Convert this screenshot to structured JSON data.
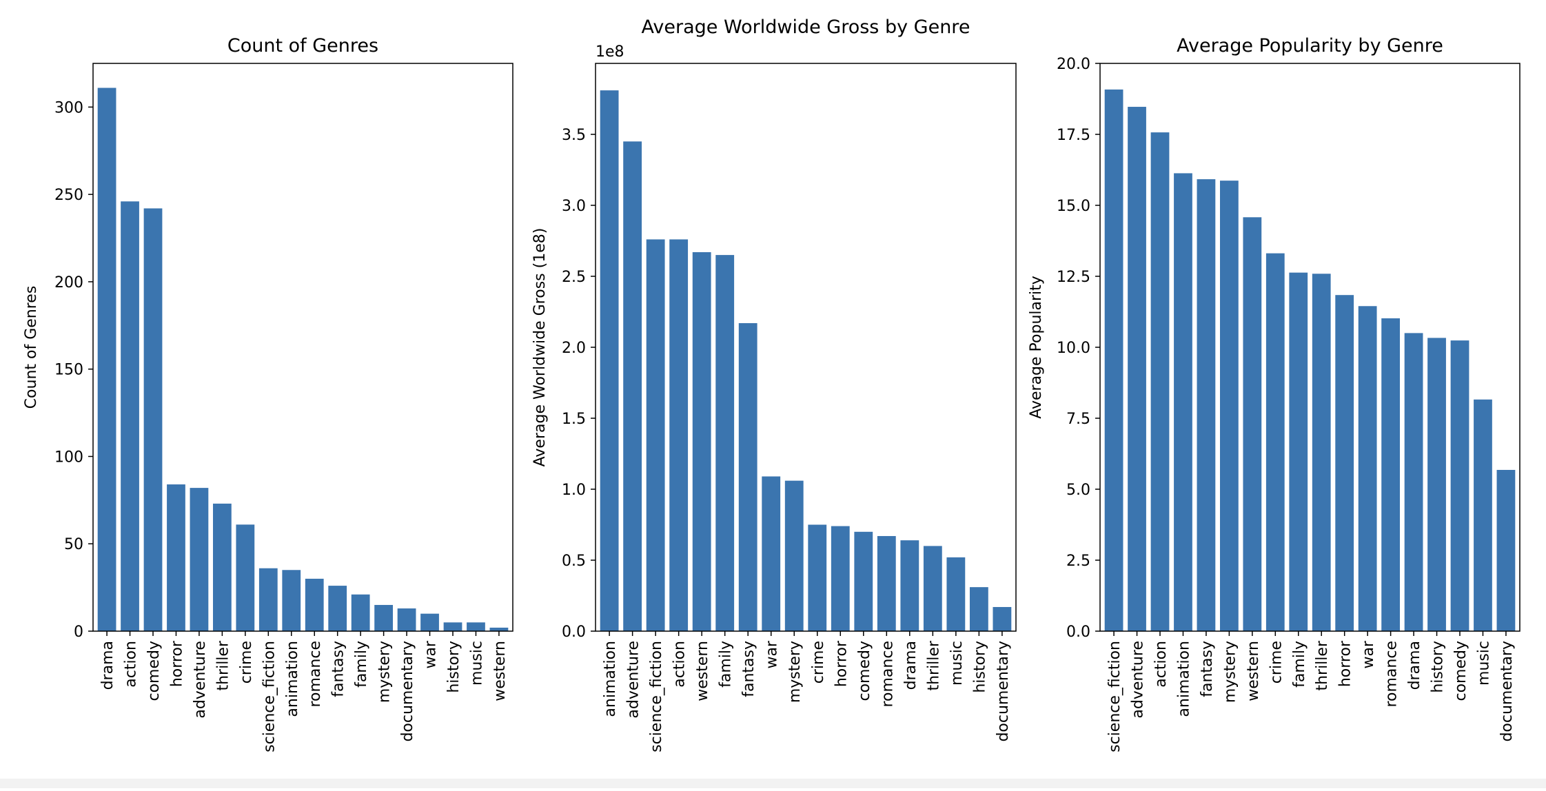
{
  "figure": {
    "bar_color": "#3b75af",
    "axis_color": "#000000",
    "background": "#ffffff"
  },
  "chart_data": [
    {
      "type": "bar",
      "title": "Count of Genres",
      "xlabel": "",
      "ylabel": "Count of Genres",
      "ylim": [
        0,
        325
      ],
      "yticks": [
        0,
        50,
        100,
        150,
        200,
        250,
        300
      ],
      "ytick_labels": [
        "0",
        "50",
        "100",
        "150",
        "200",
        "250",
        "300"
      ],
      "offset_text": "",
      "grid": false,
      "categories": [
        "drama",
        "action",
        "comedy",
        "horror",
        "adventure",
        "thriller",
        "crime",
        "science_fiction",
        "animation",
        "romance",
        "fantasy",
        "family",
        "mystery",
        "documentary",
        "war",
        "history",
        "music",
        "western"
      ],
      "values": [
        311,
        246,
        242,
        84,
        82,
        73,
        61,
        36,
        35,
        30,
        26,
        21,
        15,
        13,
        10,
        5,
        5,
        2
      ]
    },
    {
      "type": "bar",
      "title": "Average Worldwide Gross by Genre",
      "xlabel": "",
      "ylabel": "Average Worldwide Gross (1e8)",
      "ylim": [
        0,
        4.0
      ],
      "yticks": [
        0,
        0.5,
        1.0,
        1.5,
        2.0,
        2.5,
        3.0,
        3.5
      ],
      "ytick_labels": [
        "0.0",
        "0.5",
        "1.0",
        "1.5",
        "2.0",
        "2.5",
        "3.0",
        "3.5"
      ],
      "offset_text": "1e8",
      "grid": false,
      "categories": [
        "animation",
        "adventure",
        "science_fiction",
        "action",
        "western",
        "family",
        "fantasy",
        "war",
        "mystery",
        "crime",
        "horror",
        "comedy",
        "romance",
        "drama",
        "thriller",
        "music",
        "history",
        "documentary"
      ],
      "values": [
        3.81,
        3.45,
        2.76,
        2.76,
        2.67,
        2.65,
        2.17,
        1.09,
        1.06,
        0.75,
        0.74,
        0.7,
        0.67,
        0.64,
        0.6,
        0.52,
        0.31,
        0.17
      ]
    },
    {
      "type": "bar",
      "title": "Average Popularity by Genre",
      "xlabel": "",
      "ylabel": "Average Popularity",
      "ylim": [
        0,
        20.0
      ],
      "yticks": [
        0,
        2.5,
        5.0,
        7.5,
        10.0,
        12.5,
        15.0,
        17.5,
        20.0
      ],
      "ytick_labels": [
        "0.0",
        "2.5",
        "5.0",
        "7.5",
        "10.0",
        "12.5",
        "15.0",
        "17.5",
        "20.0"
      ],
      "offset_text": "",
      "grid": false,
      "categories": [
        "science_fiction",
        "adventure",
        "action",
        "animation",
        "fantasy",
        "mystery",
        "western",
        "crime",
        "family",
        "thriller",
        "horror",
        "war",
        "romance",
        "drama",
        "history",
        "comedy",
        "music",
        "documentary"
      ],
      "values": [
        19.08,
        18.47,
        17.57,
        16.13,
        15.92,
        15.87,
        14.58,
        13.31,
        12.63,
        12.59,
        11.84,
        11.45,
        11.02,
        10.5,
        10.33,
        10.24,
        8.16,
        5.68
      ]
    }
  ]
}
